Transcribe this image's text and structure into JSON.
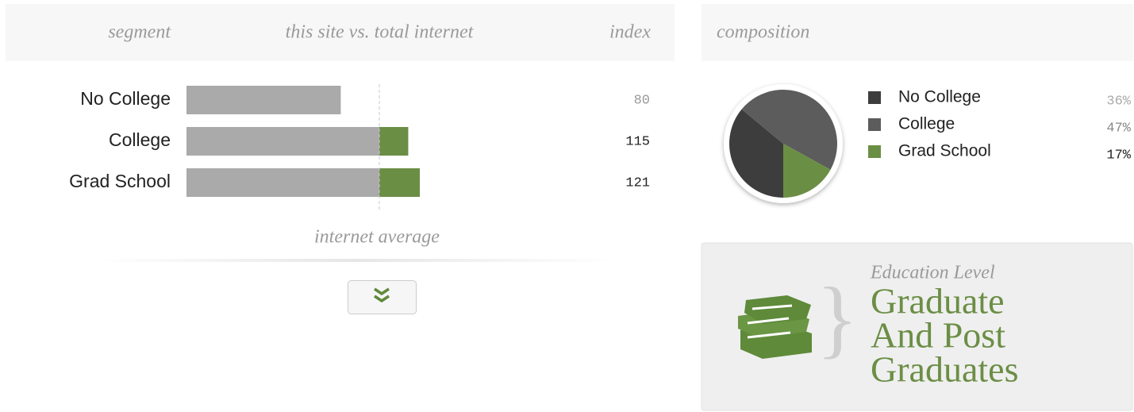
{
  "header": {
    "segment": "segment",
    "comparison": "this site vs. total internet",
    "index": "index",
    "composition": "composition"
  },
  "chart_data": [
    {
      "type": "bar",
      "categories": [
        "No College",
        "College",
        "Grad School"
      ],
      "values": [
        80,
        115,
        121
      ],
      "xlim": [
        0,
        200
      ],
      "reference_line": {
        "value": 100,
        "label": "internet average"
      },
      "colors": {
        "below": "#aaaaaa",
        "above": "#6b8e45"
      }
    },
    {
      "type": "pie",
      "categories": [
        "No College",
        "College",
        "Grad School"
      ],
      "values": [
        36,
        47,
        17
      ],
      "value_labels": [
        "36%",
        "47%",
        "17%"
      ],
      "colors": [
        "#3d3d3d",
        "#5c5c5c",
        "#6b8e45"
      ]
    }
  ],
  "badge": {
    "label": "Education Level",
    "lines": [
      "Graduate",
      "And Post",
      "Graduates"
    ]
  }
}
